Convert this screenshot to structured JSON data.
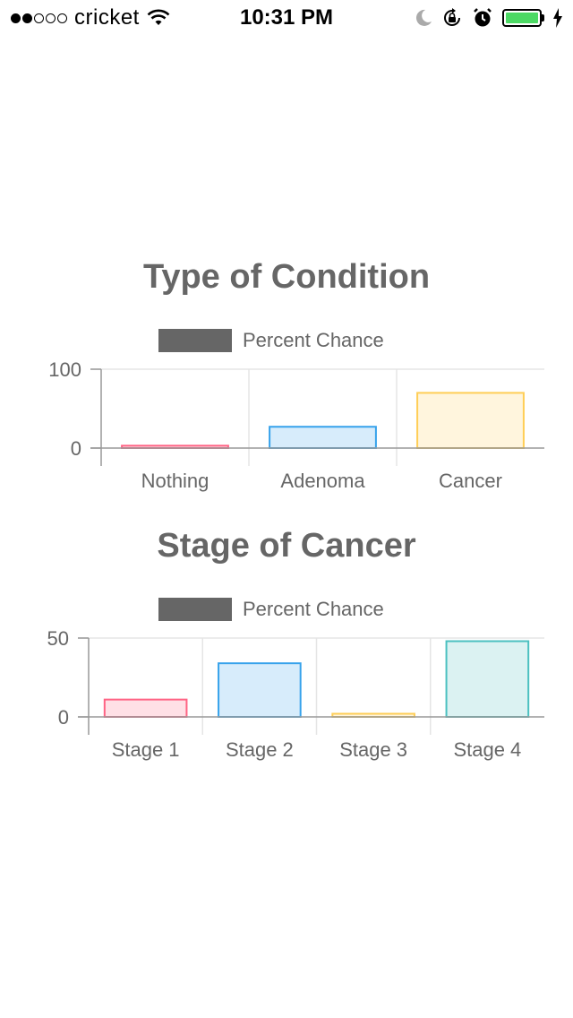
{
  "status_bar": {
    "carrier": "cricket",
    "time": "10:31 PM",
    "signal_bars_filled": 2,
    "signal_bars_total": 5,
    "battery_level": 1.0,
    "battery_color": "#4cd964",
    "icons": [
      "wifi-icon",
      "moon-icon",
      "rotation-lock-icon",
      "alarm-icon",
      "battery-icon",
      "charging-bolt-icon"
    ]
  },
  "charts": [
    {
      "title": "Type of Condition",
      "legend_label": "Percent Chance",
      "legend_color": "#666666",
      "chart_data": {
        "type": "bar",
        "categories": [
          "Nothing",
          "Adenoma",
          "Cancer"
        ],
        "series": [
          {
            "name": "Percent Chance",
            "values": [
              3,
              27,
              70
            ]
          }
        ],
        "ylim": [
          0,
          100
        ],
        "yticks": [
          "100",
          "0"
        ],
        "grid": true,
        "legend_placement": "top"
      },
      "bar_colors": [
        {
          "fill": "#ffe0e6",
          "stroke": "#ff6384"
        },
        {
          "fill": "#d7ecfb",
          "stroke": "#36a2eb"
        },
        {
          "fill": "#fff5dd",
          "stroke": "#ffce56"
        }
      ]
    },
    {
      "title": "Stage of Cancer",
      "legend_label": "Percent Chance",
      "legend_color": "#666666",
      "chart_data": {
        "type": "bar",
        "categories": [
          "Stage 1",
          "Stage 2",
          "Stage 3",
          "Stage 4"
        ],
        "series": [
          {
            "name": "Percent Chance",
            "values": [
              11,
              34,
              2,
              48
            ]
          }
        ],
        "ylim": [
          0,
          50
        ],
        "yticks": [
          "50",
          "0"
        ],
        "grid": true,
        "legend_placement": "top"
      },
      "bar_colors": [
        {
          "fill": "#ffe0e6",
          "stroke": "#ff6384"
        },
        {
          "fill": "#d7ecfb",
          "stroke": "#36a2eb"
        },
        {
          "fill": "#fff5dd",
          "stroke": "#ffce56"
        },
        {
          "fill": "#dbf2f2",
          "stroke": "#4bc0c0"
        }
      ]
    }
  ]
}
